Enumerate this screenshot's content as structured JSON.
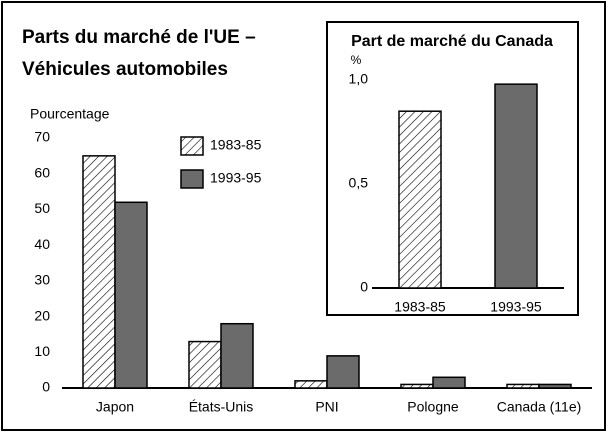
{
  "chart_data": [
    {
      "type": "bar",
      "title": [
        "Parts du marché de l'UE –",
        "Véhicules automobiles"
      ],
      "y_label": "Pourcentage",
      "categories": [
        "Japon",
        "États-Unis",
        "PNI",
        "Pologne",
        "Canada (11e)"
      ],
      "series": [
        {
          "name": "1983-85",
          "color": "#ffffff",
          "hatch": true,
          "values": [
            65,
            13,
            2,
            1,
            1
          ]
        },
        {
          "name": "1993-95",
          "color": "#6b6b6b",
          "hatch": false,
          "values": [
            52,
            18,
            9,
            3,
            1
          ]
        }
      ],
      "ylim": [
        0,
        70
      ],
      "yticks": [
        0,
        10,
        20,
        30,
        40,
        50,
        60,
        70
      ],
      "grid": false
    },
    {
      "type": "bar",
      "title": "Part de marché du Canada",
      "y_label": "%",
      "categories": [
        "1983-85",
        "1993-95"
      ],
      "values": [
        0.85,
        0.98
      ],
      "colors": [
        "#ffffff",
        "#6b6b6b"
      ],
      "hatch": [
        true,
        false
      ],
      "ylim": [
        0,
        1
      ],
      "yticks": [
        0,
        {
          "value": 0.5,
          "label": "0,5"
        },
        {
          "value": 1,
          "label": "1,0"
        }
      ],
      "grid": false
    }
  ]
}
